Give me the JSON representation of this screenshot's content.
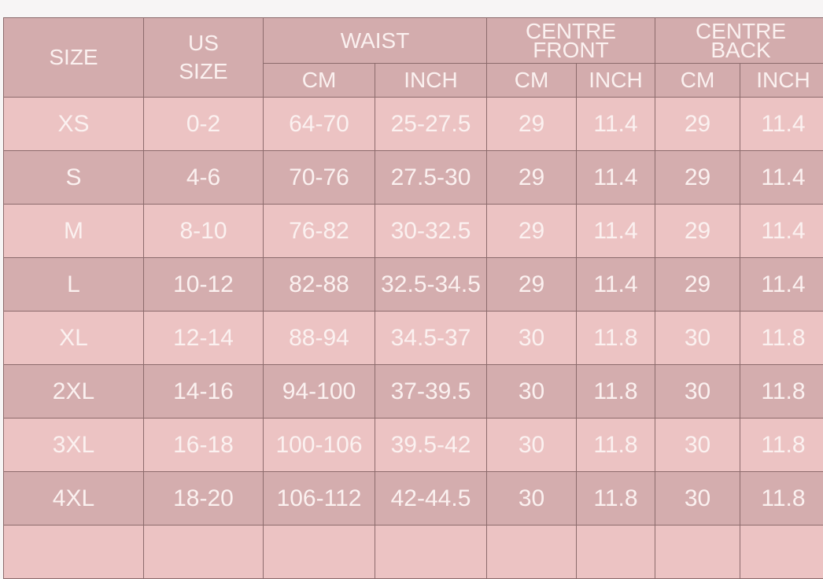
{
  "headers": {
    "size": "SIZE",
    "us_size": "US SIZE",
    "waist": "WAIST",
    "centre_front": "CENTRE FRONT",
    "centre_back": "CENTRE BACK",
    "cm": "CM",
    "inch": "INCH"
  },
  "rows": [
    [
      "XS",
      "0-2",
      "64-70",
      "25-27.5",
      "29",
      "11.4",
      "29",
      "11.4"
    ],
    [
      "S",
      "4-6",
      "70-76",
      "27.5-30",
      "29",
      "11.4",
      "29",
      "11.4"
    ],
    [
      "M",
      "8-10",
      "76-82",
      "30-32.5",
      "29",
      "11.4",
      "29",
      "11.4"
    ],
    [
      "L",
      "10-12",
      "82-88",
      "32.5-34.5",
      "29",
      "11.4",
      "29",
      "11.4"
    ],
    [
      "XL",
      "12-14",
      "88-94",
      "34.5-37",
      "30",
      "11.8",
      "30",
      "11.8"
    ],
    [
      "2XL",
      "14-16",
      "94-100",
      "37-39.5",
      "30",
      "11.8",
      "30",
      "11.8"
    ],
    [
      "3XL",
      "16-18",
      "100-106",
      "39.5-42",
      "30",
      "11.8",
      "30",
      "11.8"
    ],
    [
      "4XL",
      "18-20",
      "106-112",
      "42-44.5",
      "30",
      "11.8",
      "30",
      "11.8"
    ]
  ],
  "colors": {
    "header": "#d3acad",
    "row_light": "#ecc3c3",
    "row_dark": "#d4adae",
    "text": "#fbf1f0"
  }
}
